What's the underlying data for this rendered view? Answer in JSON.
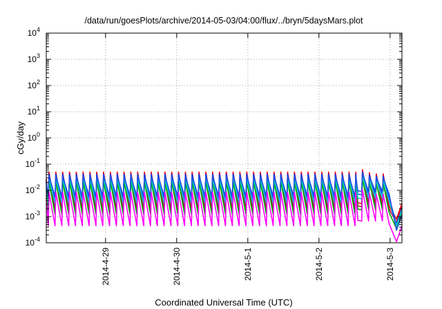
{
  "chart_data": {
    "type": "line",
    "title": "/data/run/goesPlots/archive/2014-05-03/04:00/flux/../bryn/5daysMars.plot",
    "xlabel": "Coordinated Universal Time (UTC)",
    "ylabel": "cGy/day",
    "y_scale": "log",
    "ylim": [
      0.0001,
      10000
    ],
    "y_ticks": [
      {
        "base": "10",
        "exp": "-4",
        "value": 0.0001
      },
      {
        "base": "10",
        "exp": "-3",
        "value": 0.001
      },
      {
        "base": "10",
        "exp": "-2",
        "value": 0.01
      },
      {
        "base": "10",
        "exp": "-1",
        "value": 0.1
      },
      {
        "base": "10",
        "exp": "0",
        "value": 1
      },
      {
        "base": "10",
        "exp": "1",
        "value": 10
      },
      {
        "base": "10",
        "exp": "2",
        "value": 100
      },
      {
        "base": "10",
        "exp": "3",
        "value": 1000
      },
      {
        "base": "10",
        "exp": "4",
        "value": 10000
      }
    ],
    "xlim": [
      "2014-04-28T04:00",
      "2014-05-03T04:00"
    ],
    "x_ticks": [
      {
        "label": "2014-4-29",
        "value": "2014-04-29T00:00"
      },
      {
        "label": "2014-4-30",
        "value": "2014-04-30T00:00"
      },
      {
        "label": "2014-5-1",
        "value": "2014-05-01T00:00"
      },
      {
        "label": "2014-5-2",
        "value": "2014-05-02T00:00"
      },
      {
        "label": "2014-5-3",
        "value": "2014-05-03T00:00"
      }
    ],
    "grid": true,
    "legend": "none",
    "sawtooth": {
      "start": "2014-04-28T04:00",
      "end": "2014-05-02T12:30",
      "period_hours": 2.3,
      "late_peaks": [
        "2014-05-02T14:40",
        "2014-05-02T17:00",
        "2014-05-02T19:20",
        "2014-05-02T21:40"
      ],
      "final_drop_start": "2014-05-02T23:40",
      "final_drop_end": "2014-05-03T02:10",
      "final_rise_end": "2014-05-03T04:00"
    },
    "series": [
      {
        "color": "#ff0000",
        "peak": 0.05,
        "trough": 0.0021,
        "final_low": 0.0008
      },
      {
        "color": "#c00050",
        "peak": 0.045,
        "trough": 0.0016,
        "final_low": 0.0006
      },
      {
        "color": "#0040ff",
        "peak": 0.04,
        "trough": 0.0045,
        "final_low": 0.0005
      },
      {
        "color": "#00b000",
        "peak": 0.022,
        "trough": 0.0012,
        "final_low": 0.00035
      },
      {
        "color": "#00d0d0",
        "peak": 0.03,
        "trough": 0.0032,
        "final_low": 0.00045
      },
      {
        "color": "#2050e0",
        "peak": 0.035,
        "trough": 0.006,
        "final_low": 0.0003
      },
      {
        "color": "#ff00ff",
        "peak": 0.0085,
        "trough": 0.00045,
        "final_low": 0.00011
      }
    ]
  }
}
